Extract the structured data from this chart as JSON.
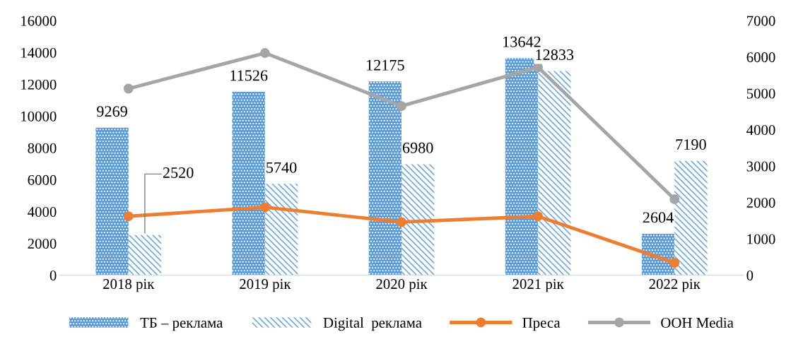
{
  "chart_data": {
    "type": "bar",
    "categories": [
      "2018 рік",
      "2019 рік",
      "2020 рік",
      "2021 рік",
      "2022 рік"
    ],
    "series": [
      {
        "name": "ТБ – реклама",
        "color": "#5b9bd5",
        "values": [
          9269,
          11526,
          12175,
          13642,
          2604
        ],
        "value_labels": [
          "9269",
          "11526",
          "12175",
          "13642",
          "2604"
        ]
      },
      {
        "name": "Digital  реклама",
        "color": "#5b9bd5",
        "values": [
          2520,
          5740,
          6980,
          12833,
          7190
        ],
        "value_labels": [
          "2520",
          "5740",
          "6980",
          "12833",
          "7190"
        ]
      },
      {
        "name": "Преса",
        "type": "line",
        "axis": "y2",
        "color": "#ed7d31",
        "values": [
          1620,
          1870,
          1460,
          1620,
          340
        ]
      },
      {
        "name": "OOH Media",
        "type": "line",
        "axis": "y2",
        "color": "#a5a5a5",
        "values": [
          5130,
          6110,
          4650,
          5720,
          2090
        ]
      }
    ],
    "ylim": [
      0,
      16000
    ],
    "yticks": [
      0,
      2000,
      4000,
      6000,
      8000,
      10000,
      12000,
      14000,
      16000
    ],
    "y2lim": [
      0,
      7000
    ],
    "y2ticks": [
      0,
      1000,
      2000,
      3000,
      4000,
      5000,
      6000,
      7000
    ],
    "marker": "circle",
    "grid": false,
    "legend": "bottom"
  }
}
